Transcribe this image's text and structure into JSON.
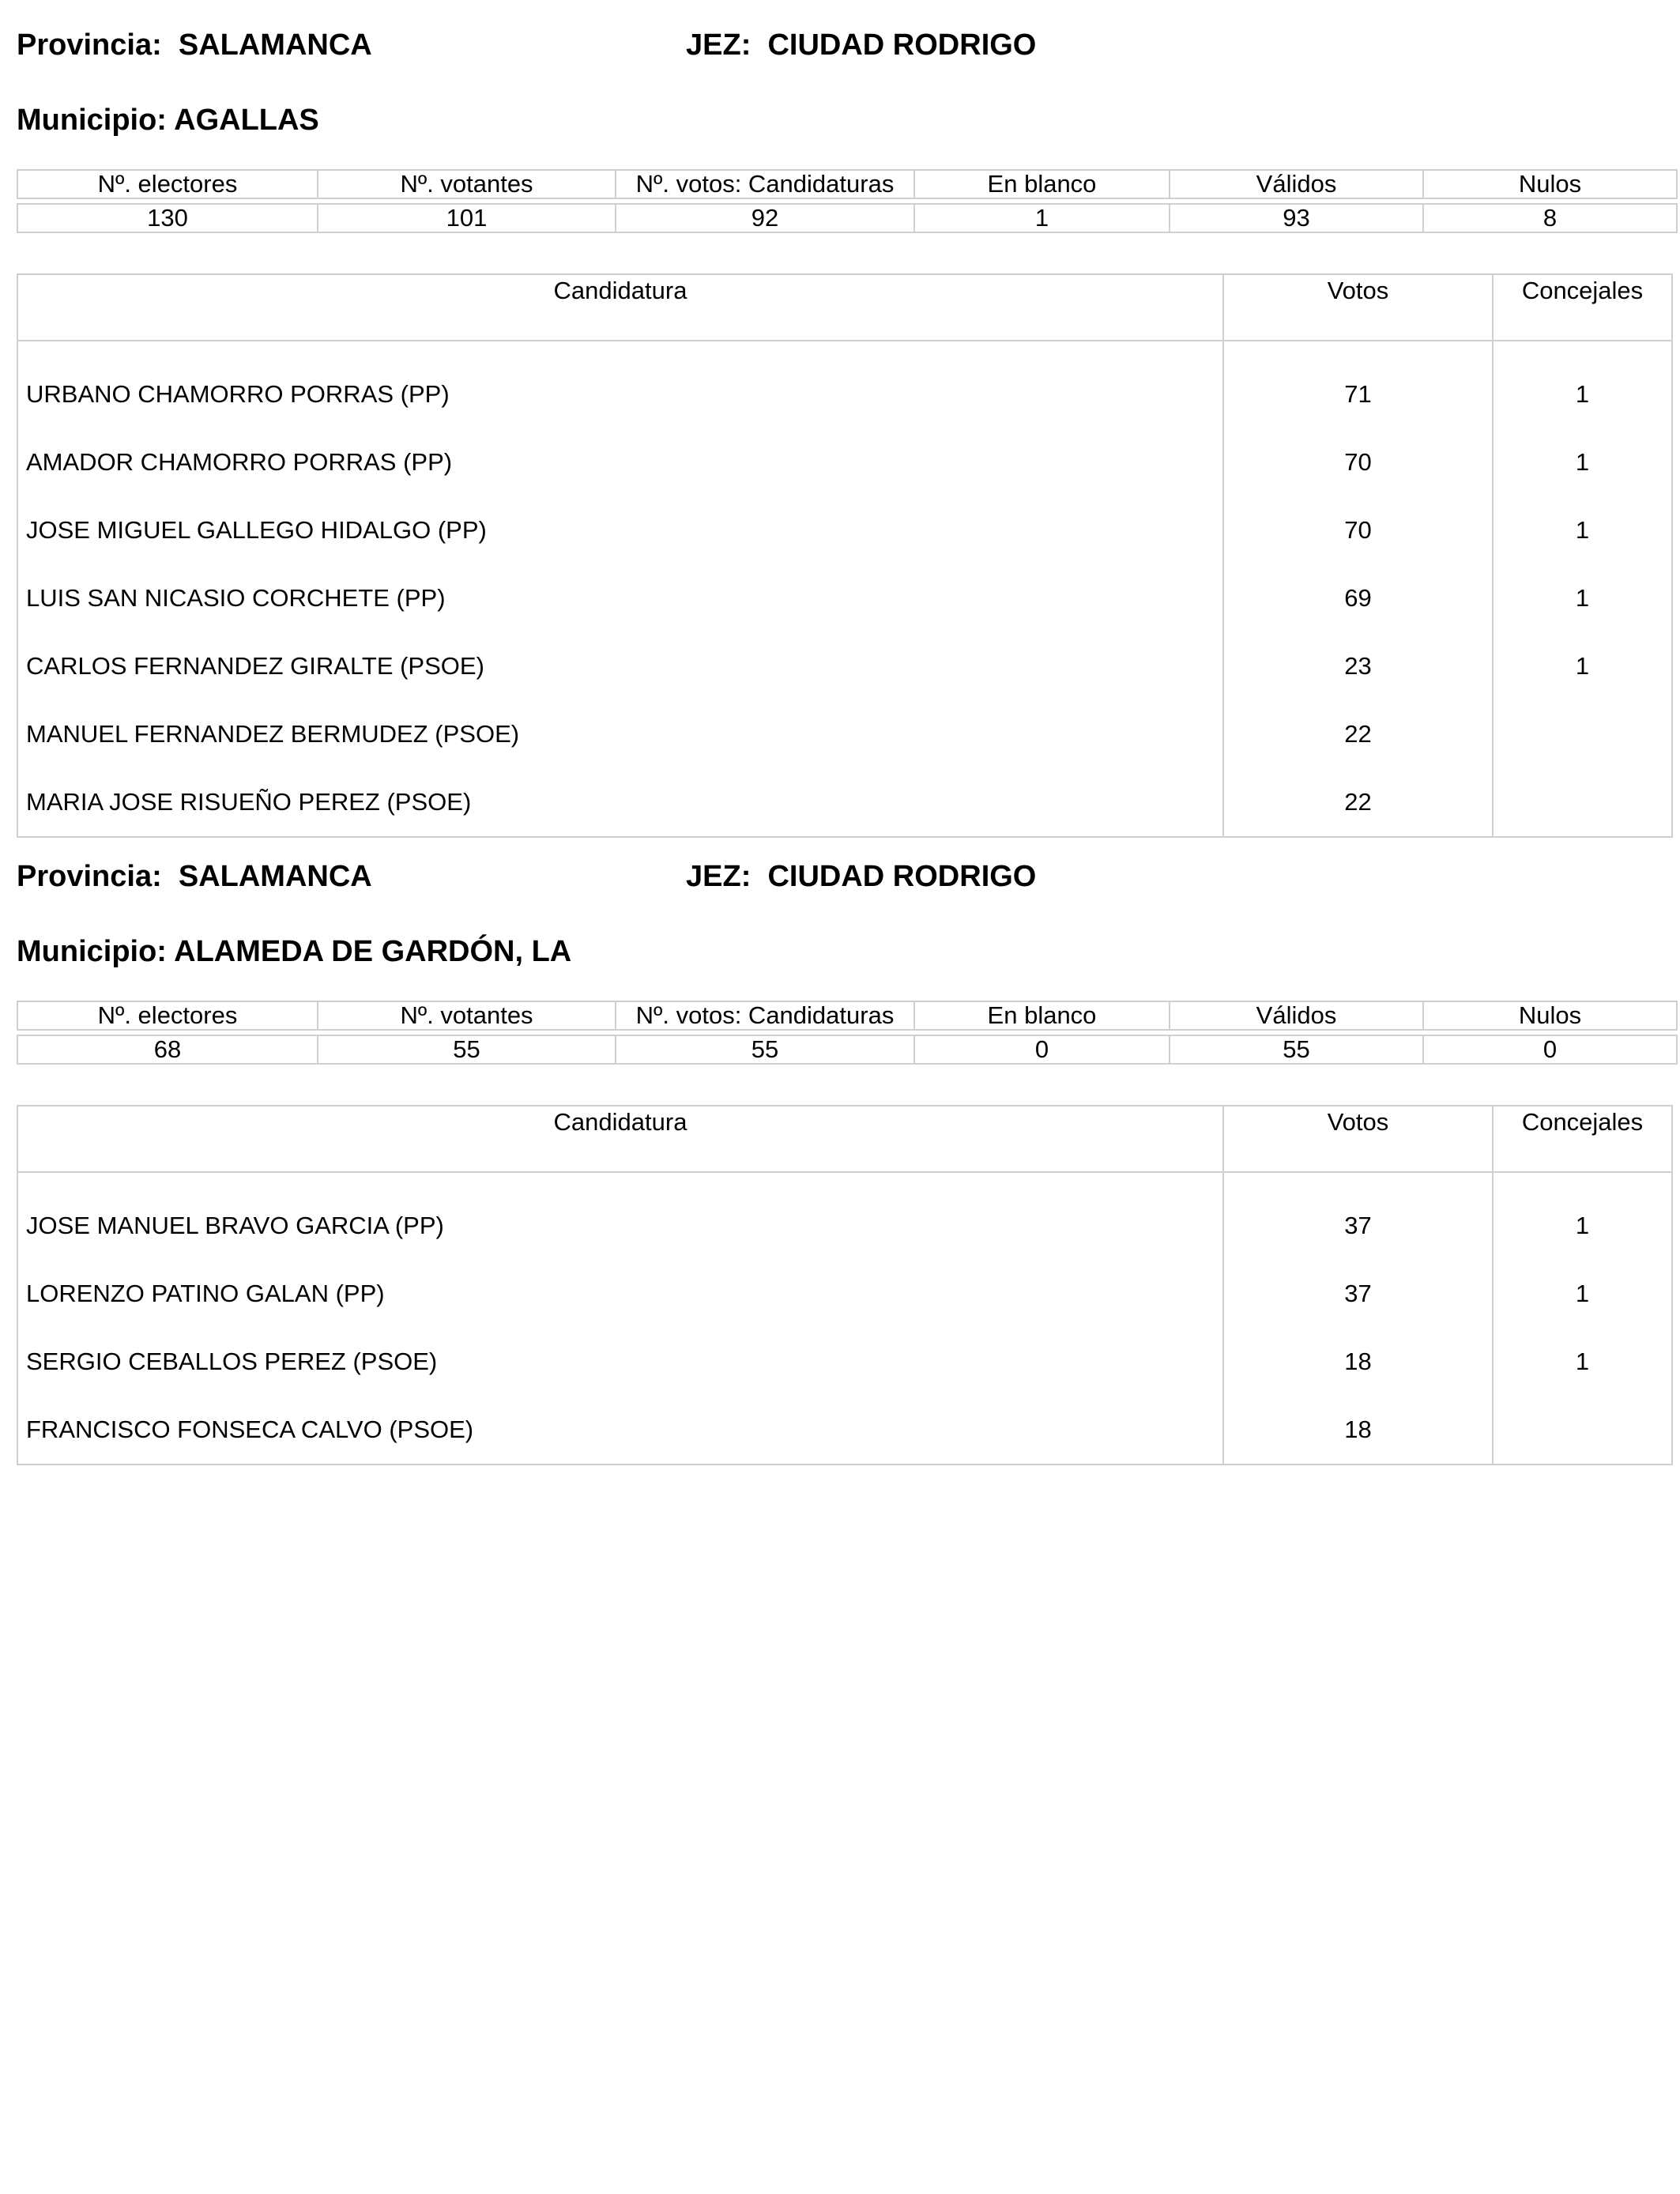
{
  "labels": {
    "provincia": "Provincia:",
    "jez": "JEZ:",
    "municipio": "Municipio:",
    "summary_headers": [
      "Nº. electores",
      "Nº. votantes",
      "Nº. votos: Candidaturas",
      "En blanco",
      "Válidos",
      "Nulos"
    ],
    "candidate_headers": [
      "Candidatura",
      "Votos",
      "Concejales"
    ]
  },
  "blocks": [
    {
      "provincia": "SALAMANCA",
      "jez": "CIUDAD RODRIGO",
      "municipio": "AGALLAS",
      "summary": [
        "130",
        "101",
        "92",
        "1",
        "93",
        "8"
      ],
      "candidates": [
        {
          "name": "URBANO CHAMORRO PORRAS (PP)",
          "votos": "71",
          "concejales": "1"
        },
        {
          "name": "AMADOR CHAMORRO PORRAS (PP)",
          "votos": "70",
          "concejales": "1"
        },
        {
          "name": "JOSE MIGUEL GALLEGO HIDALGO (PP)",
          "votos": "70",
          "concejales": "1"
        },
        {
          "name": "LUIS SAN NICASIO CORCHETE (PP)",
          "votos": "69",
          "concejales": "1"
        },
        {
          "name": "CARLOS FERNANDEZ GIRALTE (PSOE)",
          "votos": "23",
          "concejales": "1"
        },
        {
          "name": "MANUEL FERNANDEZ BERMUDEZ (PSOE)",
          "votos": "22",
          "concejales": ""
        },
        {
          "name": "MARIA JOSE RISUEÑO PEREZ (PSOE)",
          "votos": "22",
          "concejales": ""
        }
      ]
    },
    {
      "provincia": "SALAMANCA",
      "jez": "CIUDAD RODRIGO",
      "municipio": "ALAMEDA DE GARDÓN, LA",
      "summary": [
        "68",
        "55",
        "55",
        "0",
        "55",
        "0"
      ],
      "candidates": [
        {
          "name": "JOSE MANUEL BRAVO GARCIA (PP)",
          "votos": "37",
          "concejales": "1"
        },
        {
          "name": "LORENZO PATINO GALAN (PP)",
          "votos": "37",
          "concejales": "1"
        },
        {
          "name": "SERGIO CEBALLOS PEREZ (PSOE)",
          "votos": "18",
          "concejales": "1"
        },
        {
          "name": "FRANCISCO FONSECA CALVO (PSOE)",
          "votos": "18",
          "concejales": ""
        }
      ]
    }
  ]
}
